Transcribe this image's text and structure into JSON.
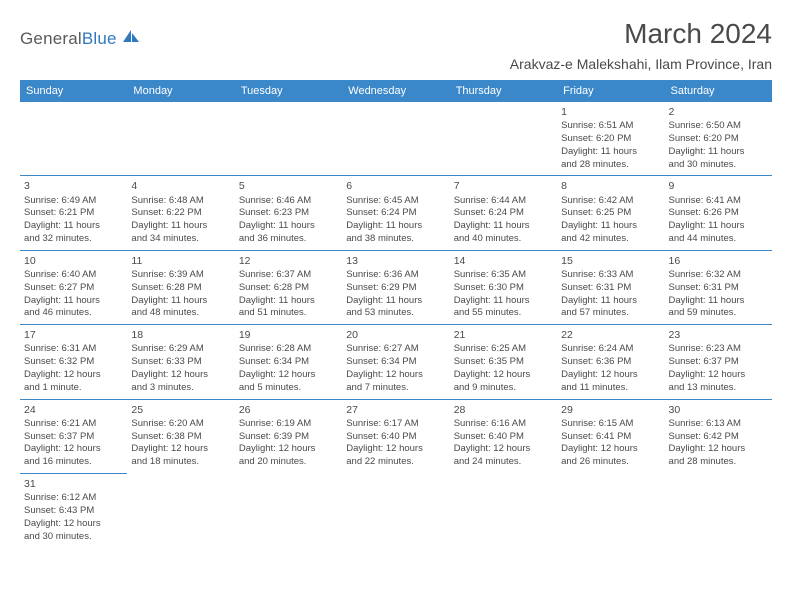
{
  "logo": {
    "text_general": "General",
    "text_blue": "Blue"
  },
  "header": {
    "month_title": "March 2024",
    "location": "Arakvaz-e Malekshahi, Ilam Province, Iran"
  },
  "colors": {
    "header_bg": "#3a87c9",
    "header_text": "#ffffff",
    "cell_border": "#3a87c9",
    "body_text": "#4a4a4a",
    "logo_gray": "#5a5a5a",
    "logo_blue": "#2f78bf"
  },
  "weekdays": [
    "Sunday",
    "Monday",
    "Tuesday",
    "Wednesday",
    "Thursday",
    "Friday",
    "Saturday"
  ],
  "weeks": [
    [
      null,
      null,
      null,
      null,
      null,
      {
        "d": "1",
        "sr": "Sunrise: 6:51 AM",
        "ss": "Sunset: 6:20 PM",
        "dl1": "Daylight: 11 hours",
        "dl2": "and 28 minutes."
      },
      {
        "d": "2",
        "sr": "Sunrise: 6:50 AM",
        "ss": "Sunset: 6:20 PM",
        "dl1": "Daylight: 11 hours",
        "dl2": "and 30 minutes."
      }
    ],
    [
      {
        "d": "3",
        "sr": "Sunrise: 6:49 AM",
        "ss": "Sunset: 6:21 PM",
        "dl1": "Daylight: 11 hours",
        "dl2": "and 32 minutes."
      },
      {
        "d": "4",
        "sr": "Sunrise: 6:48 AM",
        "ss": "Sunset: 6:22 PM",
        "dl1": "Daylight: 11 hours",
        "dl2": "and 34 minutes."
      },
      {
        "d": "5",
        "sr": "Sunrise: 6:46 AM",
        "ss": "Sunset: 6:23 PM",
        "dl1": "Daylight: 11 hours",
        "dl2": "and 36 minutes."
      },
      {
        "d": "6",
        "sr": "Sunrise: 6:45 AM",
        "ss": "Sunset: 6:24 PM",
        "dl1": "Daylight: 11 hours",
        "dl2": "and 38 minutes."
      },
      {
        "d": "7",
        "sr": "Sunrise: 6:44 AM",
        "ss": "Sunset: 6:24 PM",
        "dl1": "Daylight: 11 hours",
        "dl2": "and 40 minutes."
      },
      {
        "d": "8",
        "sr": "Sunrise: 6:42 AM",
        "ss": "Sunset: 6:25 PM",
        "dl1": "Daylight: 11 hours",
        "dl2": "and 42 minutes."
      },
      {
        "d": "9",
        "sr": "Sunrise: 6:41 AM",
        "ss": "Sunset: 6:26 PM",
        "dl1": "Daylight: 11 hours",
        "dl2": "and 44 minutes."
      }
    ],
    [
      {
        "d": "10",
        "sr": "Sunrise: 6:40 AM",
        "ss": "Sunset: 6:27 PM",
        "dl1": "Daylight: 11 hours",
        "dl2": "and 46 minutes."
      },
      {
        "d": "11",
        "sr": "Sunrise: 6:39 AM",
        "ss": "Sunset: 6:28 PM",
        "dl1": "Daylight: 11 hours",
        "dl2": "and 48 minutes."
      },
      {
        "d": "12",
        "sr": "Sunrise: 6:37 AM",
        "ss": "Sunset: 6:28 PM",
        "dl1": "Daylight: 11 hours",
        "dl2": "and 51 minutes."
      },
      {
        "d": "13",
        "sr": "Sunrise: 6:36 AM",
        "ss": "Sunset: 6:29 PM",
        "dl1": "Daylight: 11 hours",
        "dl2": "and 53 minutes."
      },
      {
        "d": "14",
        "sr": "Sunrise: 6:35 AM",
        "ss": "Sunset: 6:30 PM",
        "dl1": "Daylight: 11 hours",
        "dl2": "and 55 minutes."
      },
      {
        "d": "15",
        "sr": "Sunrise: 6:33 AM",
        "ss": "Sunset: 6:31 PM",
        "dl1": "Daylight: 11 hours",
        "dl2": "and 57 minutes."
      },
      {
        "d": "16",
        "sr": "Sunrise: 6:32 AM",
        "ss": "Sunset: 6:31 PM",
        "dl1": "Daylight: 11 hours",
        "dl2": "and 59 minutes."
      }
    ],
    [
      {
        "d": "17",
        "sr": "Sunrise: 6:31 AM",
        "ss": "Sunset: 6:32 PM",
        "dl1": "Daylight: 12 hours",
        "dl2": "and 1 minute."
      },
      {
        "d": "18",
        "sr": "Sunrise: 6:29 AM",
        "ss": "Sunset: 6:33 PM",
        "dl1": "Daylight: 12 hours",
        "dl2": "and 3 minutes."
      },
      {
        "d": "19",
        "sr": "Sunrise: 6:28 AM",
        "ss": "Sunset: 6:34 PM",
        "dl1": "Daylight: 12 hours",
        "dl2": "and 5 minutes."
      },
      {
        "d": "20",
        "sr": "Sunrise: 6:27 AM",
        "ss": "Sunset: 6:34 PM",
        "dl1": "Daylight: 12 hours",
        "dl2": "and 7 minutes."
      },
      {
        "d": "21",
        "sr": "Sunrise: 6:25 AM",
        "ss": "Sunset: 6:35 PM",
        "dl1": "Daylight: 12 hours",
        "dl2": "and 9 minutes."
      },
      {
        "d": "22",
        "sr": "Sunrise: 6:24 AM",
        "ss": "Sunset: 6:36 PM",
        "dl1": "Daylight: 12 hours",
        "dl2": "and 11 minutes."
      },
      {
        "d": "23",
        "sr": "Sunrise: 6:23 AM",
        "ss": "Sunset: 6:37 PM",
        "dl1": "Daylight: 12 hours",
        "dl2": "and 13 minutes."
      }
    ],
    [
      {
        "d": "24",
        "sr": "Sunrise: 6:21 AM",
        "ss": "Sunset: 6:37 PM",
        "dl1": "Daylight: 12 hours",
        "dl2": "and 16 minutes."
      },
      {
        "d": "25",
        "sr": "Sunrise: 6:20 AM",
        "ss": "Sunset: 6:38 PM",
        "dl1": "Daylight: 12 hours",
        "dl2": "and 18 minutes."
      },
      {
        "d": "26",
        "sr": "Sunrise: 6:19 AM",
        "ss": "Sunset: 6:39 PM",
        "dl1": "Daylight: 12 hours",
        "dl2": "and 20 minutes."
      },
      {
        "d": "27",
        "sr": "Sunrise: 6:17 AM",
        "ss": "Sunset: 6:40 PM",
        "dl1": "Daylight: 12 hours",
        "dl2": "and 22 minutes."
      },
      {
        "d": "28",
        "sr": "Sunrise: 6:16 AM",
        "ss": "Sunset: 6:40 PM",
        "dl1": "Daylight: 12 hours",
        "dl2": "and 24 minutes."
      },
      {
        "d": "29",
        "sr": "Sunrise: 6:15 AM",
        "ss": "Sunset: 6:41 PM",
        "dl1": "Daylight: 12 hours",
        "dl2": "and 26 minutes."
      },
      {
        "d": "30",
        "sr": "Sunrise: 6:13 AM",
        "ss": "Sunset: 6:42 PM",
        "dl1": "Daylight: 12 hours",
        "dl2": "and 28 minutes."
      }
    ],
    [
      {
        "d": "31",
        "sr": "Sunrise: 6:12 AM",
        "ss": "Sunset: 6:43 PM",
        "dl1": "Daylight: 12 hours",
        "dl2": "and 30 minutes."
      },
      null,
      null,
      null,
      null,
      null,
      null
    ]
  ]
}
